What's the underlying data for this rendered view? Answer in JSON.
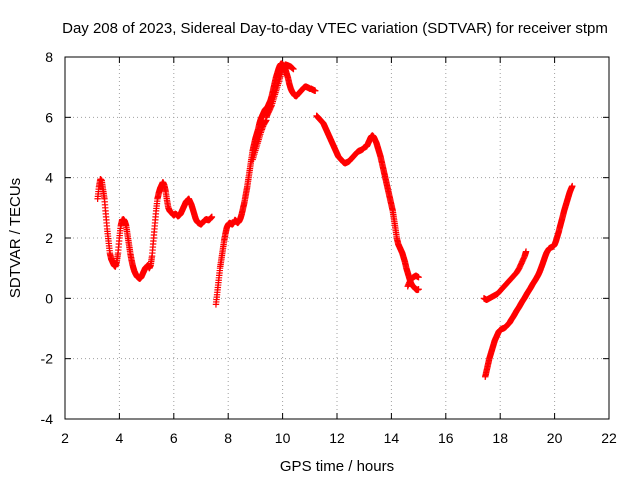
{
  "chart_data": {
    "type": "scatter",
    "title": "Day 208 of 2023, Sidereal Day-to-day VTEC variation (SDTVAR) for receiver stpm",
    "xlabel": "GPS time / hours",
    "ylabel": "SDTVAR / TECUs",
    "xlim": [
      2,
      22
    ],
    "ylim": [
      -4,
      8
    ],
    "xticks": [
      "2",
      "4",
      "6",
      "8",
      "10",
      "12",
      "14",
      "16",
      "18",
      "20",
      "22"
    ],
    "yticks": [
      "-4",
      "-2",
      "0",
      "2",
      "4",
      "6",
      "8"
    ],
    "grid": true,
    "marker": "plus",
    "color": "#ff0000",
    "segments": [
      [
        [
          3.2,
          3.3
        ],
        [
          3.25,
          3.7
        ],
        [
          3.3,
          3.95
        ],
        [
          3.35,
          3.9
        ],
        [
          3.4,
          3.6
        ],
        [
          3.45,
          3.3
        ],
        [
          3.5,
          2.8
        ],
        [
          3.55,
          2.3
        ],
        [
          3.6,
          1.9
        ],
        [
          3.65,
          1.5
        ],
        [
          3.7,
          1.3
        ],
        [
          3.75,
          1.2
        ],
        [
          3.8,
          1.1
        ],
        [
          3.85,
          1.05
        ],
        [
          3.9,
          1.2
        ],
        [
          3.95,
          1.5
        ],
        [
          4.0,
          2.0
        ],
        [
          4.05,
          2.4
        ],
        [
          4.1,
          2.6
        ],
        [
          4.15,
          2.62
        ],
        [
          4.2,
          2.55
        ],
        [
          4.25,
          2.4
        ],
        [
          4.3,
          2.1
        ],
        [
          4.35,
          1.8
        ],
        [
          4.4,
          1.5
        ],
        [
          4.45,
          1.25
        ],
        [
          4.5,
          1.05
        ],
        [
          4.55,
          0.9
        ],
        [
          4.6,
          0.8
        ],
        [
          4.65,
          0.72
        ],
        [
          4.7,
          0.68
        ],
        [
          4.75,
          0.65
        ],
        [
          4.8,
          0.7
        ],
        [
          4.85,
          0.8
        ],
        [
          4.9,
          0.9
        ],
        [
          4.95,
          1.0
        ],
        [
          5.0,
          1.05
        ],
        [
          5.05,
          1.1
        ],
        [
          5.1,
          1.0
        ],
        [
          5.15,
          1.1
        ],
        [
          5.2,
          1.4
        ],
        [
          5.25,
          1.9
        ],
        [
          5.3,
          2.4
        ],
        [
          5.35,
          2.9
        ],
        [
          5.4,
          3.3
        ],
        [
          5.45,
          3.5
        ],
        [
          5.5,
          3.65
        ],
        [
          5.55,
          3.75
        ],
        [
          5.6,
          3.85
        ],
        [
          5.65,
          3.75
        ],
        [
          5.7,
          3.55
        ],
        [
          5.75,
          3.25
        ],
        [
          5.8,
          3.0
        ],
        [
          5.85,
          2.9
        ],
        [
          5.9,
          2.85
        ],
        [
          5.95,
          2.8
        ],
        [
          6.0,
          2.75
        ],
        [
          6.05,
          2.8
        ],
        [
          6.1,
          2.78
        ],
        [
          6.15,
          2.72
        ],
        [
          6.2,
          2.75
        ],
        [
          6.25,
          2.8
        ],
        [
          6.3,
          2.9
        ],
        [
          6.35,
          3.0
        ],
        [
          6.4,
          3.1
        ],
        [
          6.45,
          3.2
        ],
        [
          6.5,
          3.25
        ],
        [
          6.55,
          3.3
        ],
        [
          6.6,
          3.2
        ],
        [
          6.65,
          3.1
        ],
        [
          6.7,
          2.95
        ],
        [
          6.75,
          2.8
        ],
        [
          6.8,
          2.65
        ],
        [
          6.85,
          2.55
        ],
        [
          6.9,
          2.5
        ],
        [
          6.95,
          2.48
        ],
        [
          7.0,
          2.45
        ],
        [
          7.05,
          2.5
        ],
        [
          7.1,
          2.55
        ],
        [
          7.15,
          2.6
        ],
        [
          7.2,
          2.62
        ],
        [
          7.25,
          2.6
        ],
        [
          7.3,
          2.6
        ],
        [
          7.35,
          2.65
        ],
        [
          7.4,
          2.7
        ]
      ],
      [
        [
          7.55,
          -0.2
        ],
        [
          7.6,
          0.2
        ],
        [
          7.65,
          0.6
        ],
        [
          7.7,
          1.0
        ],
        [
          7.75,
          1.3
        ],
        [
          7.8,
          1.6
        ],
        [
          7.85,
          1.9
        ],
        [
          7.9,
          2.15
        ],
        [
          7.95,
          2.35
        ],
        [
          8.0,
          2.45
        ],
        [
          8.05,
          2.5
        ],
        [
          8.1,
          2.48
        ],
        [
          8.15,
          2.45
        ],
        [
          8.2,
          2.5
        ],
        [
          8.25,
          2.6
        ],
        [
          8.3,
          2.55
        ],
        [
          8.35,
          2.5
        ],
        [
          8.4,
          2.55
        ],
        [
          8.45,
          2.65
        ],
        [
          8.5,
          2.8
        ],
        [
          8.55,
          3.0
        ],
        [
          8.6,
          3.2
        ],
        [
          8.65,
          3.45
        ],
        [
          8.7,
          3.7
        ],
        [
          8.75,
          4.0
        ],
        [
          8.8,
          4.3
        ],
        [
          8.85,
          4.6
        ],
        [
          8.9,
          4.9
        ],
        [
          8.95,
          5.1
        ],
        [
          9.0,
          5.3
        ],
        [
          9.05,
          5.45
        ],
        [
          9.1,
          5.6
        ],
        [
          9.15,
          5.8
        ],
        [
          9.2,
          5.95
        ],
        [
          9.25,
          6.05
        ],
        [
          9.3,
          6.15
        ],
        [
          9.35,
          6.25
        ],
        [
          9.4,
          6.3
        ],
        [
          9.45,
          6.35
        ],
        [
          9.5,
          6.45
        ],
        [
          9.55,
          6.55
        ],
        [
          9.6,
          6.7
        ],
        [
          9.65,
          6.9
        ],
        [
          9.7,
          7.1
        ],
        [
          9.75,
          7.3
        ],
        [
          9.8,
          7.45
        ],
        [
          9.85,
          7.6
        ],
        [
          9.9,
          7.72
        ],
        [
          9.95,
          7.78
        ],
        [
          10.0,
          7.75
        ],
        [
          10.05,
          7.7
        ],
        [
          10.1,
          7.6
        ],
        [
          10.15,
          7.45
        ],
        [
          10.2,
          7.3
        ],
        [
          10.25,
          7.1
        ],
        [
          10.3,
          6.95
        ],
        [
          10.35,
          6.85
        ],
        [
          10.4,
          6.78
        ],
        [
          10.45,
          6.72
        ],
        [
          10.5,
          6.7
        ],
        [
          10.55,
          6.75
        ],
        [
          10.6,
          6.8
        ],
        [
          10.65,
          6.85
        ],
        [
          10.7,
          6.9
        ],
        [
          10.75,
          6.95
        ],
        [
          10.8,
          7.0
        ],
        [
          10.85,
          7.02
        ],
        [
          10.9,
          7.0
        ],
        [
          10.95,
          6.98
        ],
        [
          11.0,
          6.95
        ],
        [
          11.05,
          6.95
        ],
        [
          11.1,
          6.92
        ],
        [
          11.15,
          6.9
        ],
        [
          11.2,
          6.88
        ]
      ],
      [
        [
          9.4,
          6.0
        ],
        [
          9.5,
          6.2
        ],
        [
          9.6,
          6.4
        ],
        [
          9.7,
          6.7
        ],
        [
          9.8,
          7.0
        ],
        [
          9.9,
          7.3
        ],
        [
          10.0,
          7.6
        ],
        [
          10.1,
          7.75
        ],
        [
          10.2,
          7.72
        ],
        [
          10.3,
          7.68
        ],
        [
          10.4,
          7.6
        ]
      ],
      [
        [
          8.9,
          4.6
        ],
        [
          9.0,
          4.9
        ],
        [
          9.1,
          5.2
        ],
        [
          9.2,
          5.5
        ],
        [
          9.3,
          5.75
        ],
        [
          9.4,
          5.9
        ]
      ],
      [
        [
          11.25,
          6.05
        ],
        [
          11.3,
          6.0
        ],
        [
          11.35,
          5.95
        ],
        [
          11.4,
          5.9
        ],
        [
          11.45,
          5.85
        ],
        [
          11.5,
          5.8
        ],
        [
          11.55,
          5.7
        ],
        [
          11.6,
          5.6
        ],
        [
          11.65,
          5.5
        ],
        [
          11.7,
          5.4
        ],
        [
          11.75,
          5.3
        ],
        [
          11.8,
          5.2
        ],
        [
          11.85,
          5.1
        ],
        [
          11.9,
          5.0
        ],
        [
          11.95,
          4.9
        ],
        [
          12.0,
          4.8
        ],
        [
          12.05,
          4.7
        ],
        [
          12.1,
          4.65
        ],
        [
          12.15,
          4.6
        ],
        [
          12.2,
          4.55
        ],
        [
          12.25,
          4.5
        ],
        [
          12.3,
          4.48
        ],
        [
          12.35,
          4.5
        ],
        [
          12.4,
          4.52
        ],
        [
          12.45,
          4.55
        ],
        [
          12.5,
          4.6
        ],
        [
          12.55,
          4.65
        ],
        [
          12.6,
          4.7
        ],
        [
          12.65,
          4.75
        ],
        [
          12.7,
          4.8
        ],
        [
          12.75,
          4.85
        ],
        [
          12.8,
          4.88
        ],
        [
          12.85,
          4.9
        ],
        [
          12.9,
          4.92
        ],
        [
          12.95,
          4.95
        ],
        [
          13.0,
          5.0
        ],
        [
          13.05,
          5.02
        ],
        [
          13.1,
          5.05
        ],
        [
          13.15,
          5.15
        ],
        [
          13.2,
          5.25
        ],
        [
          13.25,
          5.35
        ],
        [
          13.3,
          5.4
        ],
        [
          13.35,
          5.35
        ],
        [
          13.4,
          5.25
        ],
        [
          13.45,
          5.15
        ],
        [
          13.5,
          5.0
        ],
        [
          13.55,
          4.85
        ],
        [
          13.6,
          4.7
        ],
        [
          13.65,
          4.5
        ],
        [
          13.7,
          4.3
        ],
        [
          13.75,
          4.1
        ],
        [
          13.8,
          3.9
        ],
        [
          13.85,
          3.7
        ],
        [
          13.9,
          3.5
        ],
        [
          13.95,
          3.3
        ],
        [
          14.0,
          3.1
        ],
        [
          14.05,
          2.9
        ],
        [
          14.1,
          2.6
        ],
        [
          14.15,
          2.3
        ],
        [
          14.2,
          2.0
        ],
        [
          14.25,
          1.8
        ],
        [
          14.3,
          1.7
        ],
        [
          14.35,
          1.6
        ],
        [
          14.4,
          1.5
        ],
        [
          14.45,
          1.35
        ],
        [
          14.5,
          1.2
        ],
        [
          14.55,
          1.0
        ],
        [
          14.6,
          0.85
        ],
        [
          14.65,
          0.7
        ],
        [
          14.7,
          0.55
        ],
        [
          14.75,
          0.45
        ],
        [
          14.8,
          0.4
        ],
        [
          14.85,
          0.35
        ],
        [
          14.9,
          0.3
        ],
        [
          14.95,
          0.28
        ],
        [
          15.0,
          0.3
        ]
      ],
      [
        [
          14.6,
          0.4
        ],
        [
          14.7,
          0.6
        ],
        [
          14.8,
          0.7
        ],
        [
          14.9,
          0.75
        ],
        [
          15.0,
          0.7
        ]
      ],
      [
        [
          17.45,
          -2.6
        ],
        [
          17.5,
          -2.4
        ],
        [
          17.55,
          -2.2
        ],
        [
          17.6,
          -2.0
        ],
        [
          17.65,
          -1.85
        ],
        [
          17.7,
          -1.7
        ],
        [
          17.75,
          -1.55
        ],
        [
          17.8,
          -1.4
        ],
        [
          17.85,
          -1.3
        ],
        [
          17.9,
          -1.2
        ],
        [
          17.95,
          -1.1
        ],
        [
          18.0,
          -1.05
        ],
        [
          18.05,
          -1.02
        ],
        [
          18.1,
          -1.0
        ],
        [
          18.15,
          -0.98
        ],
        [
          18.2,
          -0.95
        ],
        [
          18.25,
          -0.9
        ],
        [
          18.3,
          -0.85
        ],
        [
          18.35,
          -0.8
        ],
        [
          18.4,
          -0.72
        ],
        [
          18.45,
          -0.65
        ],
        [
          18.5,
          -0.58
        ],
        [
          18.55,
          -0.5
        ],
        [
          18.6,
          -0.42
        ],
        [
          18.65,
          -0.35
        ],
        [
          18.7,
          -0.28
        ],
        [
          18.75,
          -0.2
        ],
        [
          18.8,
          -0.12
        ],
        [
          18.85,
          -0.05
        ],
        [
          18.9,
          0.02
        ],
        [
          18.95,
          0.1
        ],
        [
          19.0,
          0.18
        ],
        [
          19.05,
          0.25
        ],
        [
          19.1,
          0.32
        ],
        [
          19.15,
          0.4
        ],
        [
          19.2,
          0.48
        ],
        [
          19.25,
          0.55
        ],
        [
          19.3,
          0.62
        ],
        [
          19.35,
          0.7
        ],
        [
          19.4,
          0.78
        ],
        [
          19.45,
          0.88
        ],
        [
          19.5,
          1.0
        ],
        [
          19.55,
          1.12
        ],
        [
          19.6,
          1.25
        ],
        [
          19.65,
          1.38
        ],
        [
          19.7,
          1.5
        ],
        [
          19.75,
          1.58
        ],
        [
          19.8,
          1.65
        ],
        [
          19.85,
          1.68
        ],
        [
          19.9,
          1.7
        ],
        [
          19.95,
          1.72
        ],
        [
          20.0,
          1.78
        ],
        [
          20.05,
          1.9
        ],
        [
          20.1,
          2.05
        ],
        [
          20.15,
          2.2
        ],
        [
          20.2,
          2.38
        ],
        [
          20.25,
          2.55
        ],
        [
          20.3,
          2.72
        ],
        [
          20.35,
          2.9
        ],
        [
          20.4,
          3.05
        ],
        [
          20.45,
          3.2
        ],
        [
          20.5,
          3.35
        ],
        [
          20.55,
          3.5
        ],
        [
          20.6,
          3.62
        ],
        [
          20.65,
          3.72
        ]
      ],
      [
        [
          17.4,
          0.0
        ],
        [
          17.5,
          -0.05
        ],
        [
          17.6,
          0.0
        ],
        [
          17.7,
          0.05
        ],
        [
          17.8,
          0.1
        ],
        [
          17.9,
          0.15
        ],
        [
          18.0,
          0.25
        ],
        [
          18.1,
          0.35
        ],
        [
          18.2,
          0.45
        ],
        [
          18.3,
          0.55
        ],
        [
          18.4,
          0.65
        ],
        [
          18.5,
          0.75
        ],
        [
          18.6,
          0.85
        ],
        [
          18.7,
          1.0
        ],
        [
          18.8,
          1.2
        ],
        [
          18.9,
          1.4
        ],
        [
          18.95,
          1.55
        ]
      ]
    ]
  }
}
